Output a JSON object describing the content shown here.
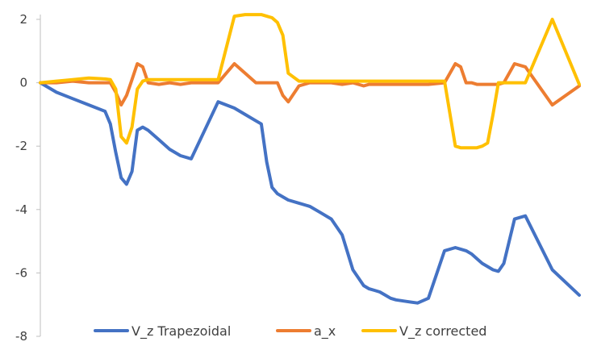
{
  "chart_data": {
    "type": "line",
    "title": "",
    "xlabel": "",
    "ylabel": "",
    "ylim": [
      -8,
      2
    ],
    "yticks": [
      "2",
      "0",
      "-2",
      "-4",
      "-6",
      "-8"
    ],
    "grid": false,
    "legend_position": "bottom",
    "x": [
      0,
      3,
      6,
      9,
      12,
      13,
      14,
      15,
      16,
      17,
      18,
      19,
      20,
      22,
      24,
      26,
      28,
      33,
      36,
      38,
      40,
      41,
      42,
      43,
      44,
      45,
      46,
      48,
      50,
      52,
      54,
      56,
      58,
      60,
      61,
      62,
      63,
      64,
      65,
      66,
      68,
      70,
      72,
      75,
      77,
      78,
      79,
      80,
      81,
      82,
      83,
      84,
      85,
      86,
      88,
      90,
      95,
      100
    ],
    "series": [
      {
        "name": "V_z Trapezoidal",
        "color": "#4472C4",
        "values": [
          0,
          -0.3,
          -0.5,
          -0.7,
          -0.9,
          -1.3,
          -2.2,
          -3,
          -3.2,
          -2.8,
          -1.5,
          -1.4,
          -1.5,
          -1.8,
          -2.1,
          -2.3,
          -2.4,
          -0.6,
          -0.8,
          -1,
          -1.2,
          -1.3,
          -2.5,
          -3.3,
          -3.5,
          -3.6,
          -3.7,
          -3.8,
          -3.9,
          -4.1,
          -4.3,
          -4.8,
          -5.9,
          -6.4,
          -6.5,
          -6.55,
          -6.6,
          -6.7,
          -6.8,
          -6.85,
          -6.9,
          -6.95,
          -6.8,
          -5.3,
          -5.2,
          -5.25,
          -5.3,
          -5.4,
          -5.55,
          -5.7,
          -5.8,
          -5.9,
          -5.95,
          -5.7,
          -4.3,
          -4.2,
          -5.9,
          -6.7
        ]
      },
      {
        "name": "a_x",
        "color": "#ED7D31",
        "values": [
          0,
          0,
          0.05,
          0,
          0,
          0,
          -0.3,
          -0.7,
          -0.4,
          0.1,
          0.6,
          0.5,
          0,
          -0.05,
          0,
          -0.05,
          0,
          0,
          0.6,
          0.3,
          0,
          0,
          0,
          0,
          0,
          -0.4,
          -0.6,
          -0.1,
          0,
          0,
          0,
          -0.05,
          0,
          -0.1,
          -0.05,
          -0.05,
          -0.05,
          -0.05,
          -0.05,
          -0.05,
          -0.05,
          -0.05,
          -0.05,
          0,
          0.6,
          0.5,
          0,
          0,
          -0.05,
          -0.05,
          -0.05,
          -0.05,
          -0.05,
          0,
          0.6,
          0.5,
          -0.7,
          -0.1
        ]
      },
      {
        "name": "V_z corrected",
        "color": "#FFC000",
        "values": [
          0,
          0.05,
          0.1,
          0.15,
          0.12,
          0.1,
          -0.2,
          -1.7,
          -1.9,
          -1.4,
          -0.2,
          0.05,
          0.1,
          0.1,
          0.1,
          0.1,
          0.1,
          0.1,
          2.1,
          2.15,
          2.15,
          2.15,
          2.1,
          2.05,
          1.9,
          1.5,
          0.3,
          0.05,
          0.05,
          0.05,
          0.05,
          0.05,
          0.05,
          0.05,
          0.05,
          0.05,
          0.05,
          0.05,
          0.05,
          0.05,
          0.05,
          0.05,
          0.05,
          0.05,
          -2,
          -2.05,
          -2.05,
          -2.05,
          -2.05,
          -2,
          -1.9,
          -1,
          0,
          0,
          0,
          0,
          2,
          -0.05
        ]
      }
    ]
  }
}
